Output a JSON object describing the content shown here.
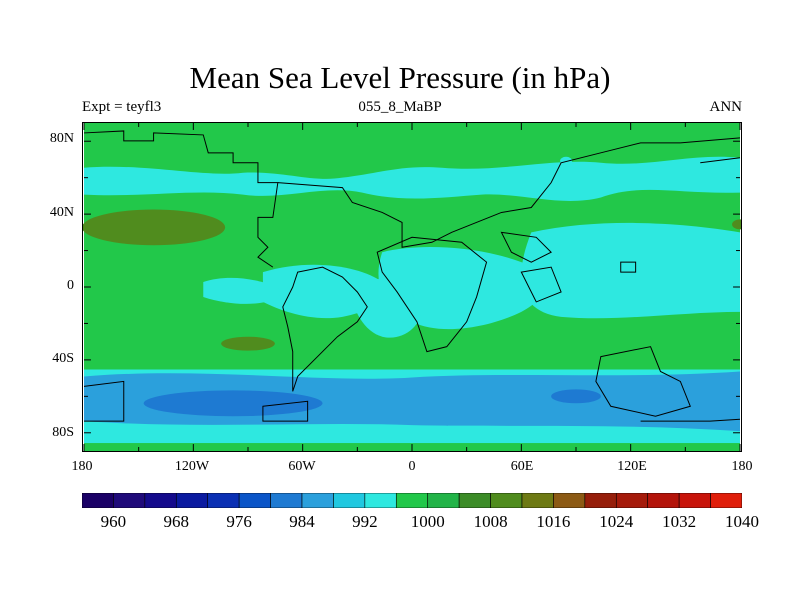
{
  "title": "Mean Sea Level Pressure (in hPa)",
  "left_label": "Expt = teyfl3",
  "center_label": "055_8_MaBP",
  "right_label": "ANN",
  "lat_labels": [
    "80N",
    "40N",
    "0",
    "40S",
    "80S"
  ],
  "lat_values": [
    80,
    40,
    0,
    -40,
    -80
  ],
  "lon_labels": [
    "180",
    "120W",
    "60W",
    "0",
    "60E",
    "120E",
    "180"
  ],
  "lon_values": [
    -180,
    -120,
    -60,
    0,
    60,
    120,
    180
  ],
  "colorbar": {
    "labels": [
      "960",
      "968",
      "976",
      "984",
      "992",
      "1000",
      "1008",
      "1016",
      "1024",
      "1032",
      "1040"
    ],
    "colors": [
      "#1a0066",
      "#1f0a7a",
      "#140a8c",
      "#0a1aa0",
      "#0a30b4",
      "#0a55c8",
      "#1e7ad2",
      "#2ba0dc",
      "#20c8e0",
      "#2ee8e0",
      "#22c84a",
      "#22b448",
      "#3c8c28",
      "#508c1e",
      "#6e7a14",
      "#8c5a14",
      "#961e0a",
      "#a51a0a",
      "#b4140a",
      "#c8140a",
      "#e01e0a"
    ]
  },
  "palette": {
    "green": "#22c84a",
    "cyan": "#2ee8e0",
    "blue": "#2ba0dc",
    "deepblue": "#1e7ad2",
    "olive": "#508c1e"
  }
}
